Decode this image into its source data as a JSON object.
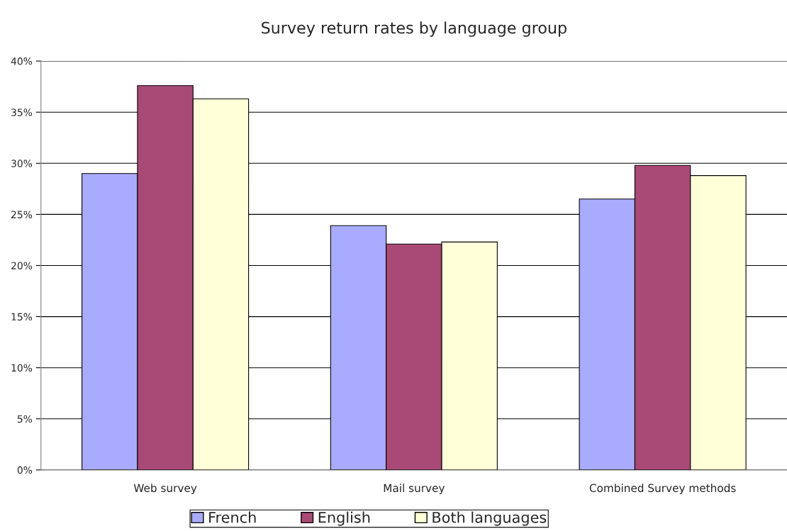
{
  "chart_data": {
    "type": "bar",
    "title": "Survey return rates by language group",
    "categories": [
      "Web survey",
      "Mail survey",
      "Combined Survey methods"
    ],
    "series": [
      {
        "name": "French",
        "color": "#a9abff",
        "values": [
          29.0,
          23.9,
          26.5
        ]
      },
      {
        "name": "English",
        "color": "#a94a76",
        "values": [
          37.6,
          22.1,
          29.8
        ]
      },
      {
        "name": "Both languages",
        "color": "#ffffd8",
        "values": [
          36.3,
          22.3,
          28.8
        ]
      }
    ],
    "ylim": [
      0,
      40
    ],
    "yticks": [
      {
        "value": 0,
        "label": "0%"
      },
      {
        "value": 5,
        "label": "5%"
      },
      {
        "value": 10,
        "label": "10%"
      },
      {
        "value": 15,
        "label": "15%"
      },
      {
        "value": 20,
        "label": "20%"
      },
      {
        "value": 25,
        "label": "25%"
      },
      {
        "value": 30,
        "label": "30%"
      },
      {
        "value": 35,
        "label": "35%"
      },
      {
        "value": 40,
        "label": "40%"
      }
    ],
    "grid": "y",
    "legend": "bottom"
  }
}
